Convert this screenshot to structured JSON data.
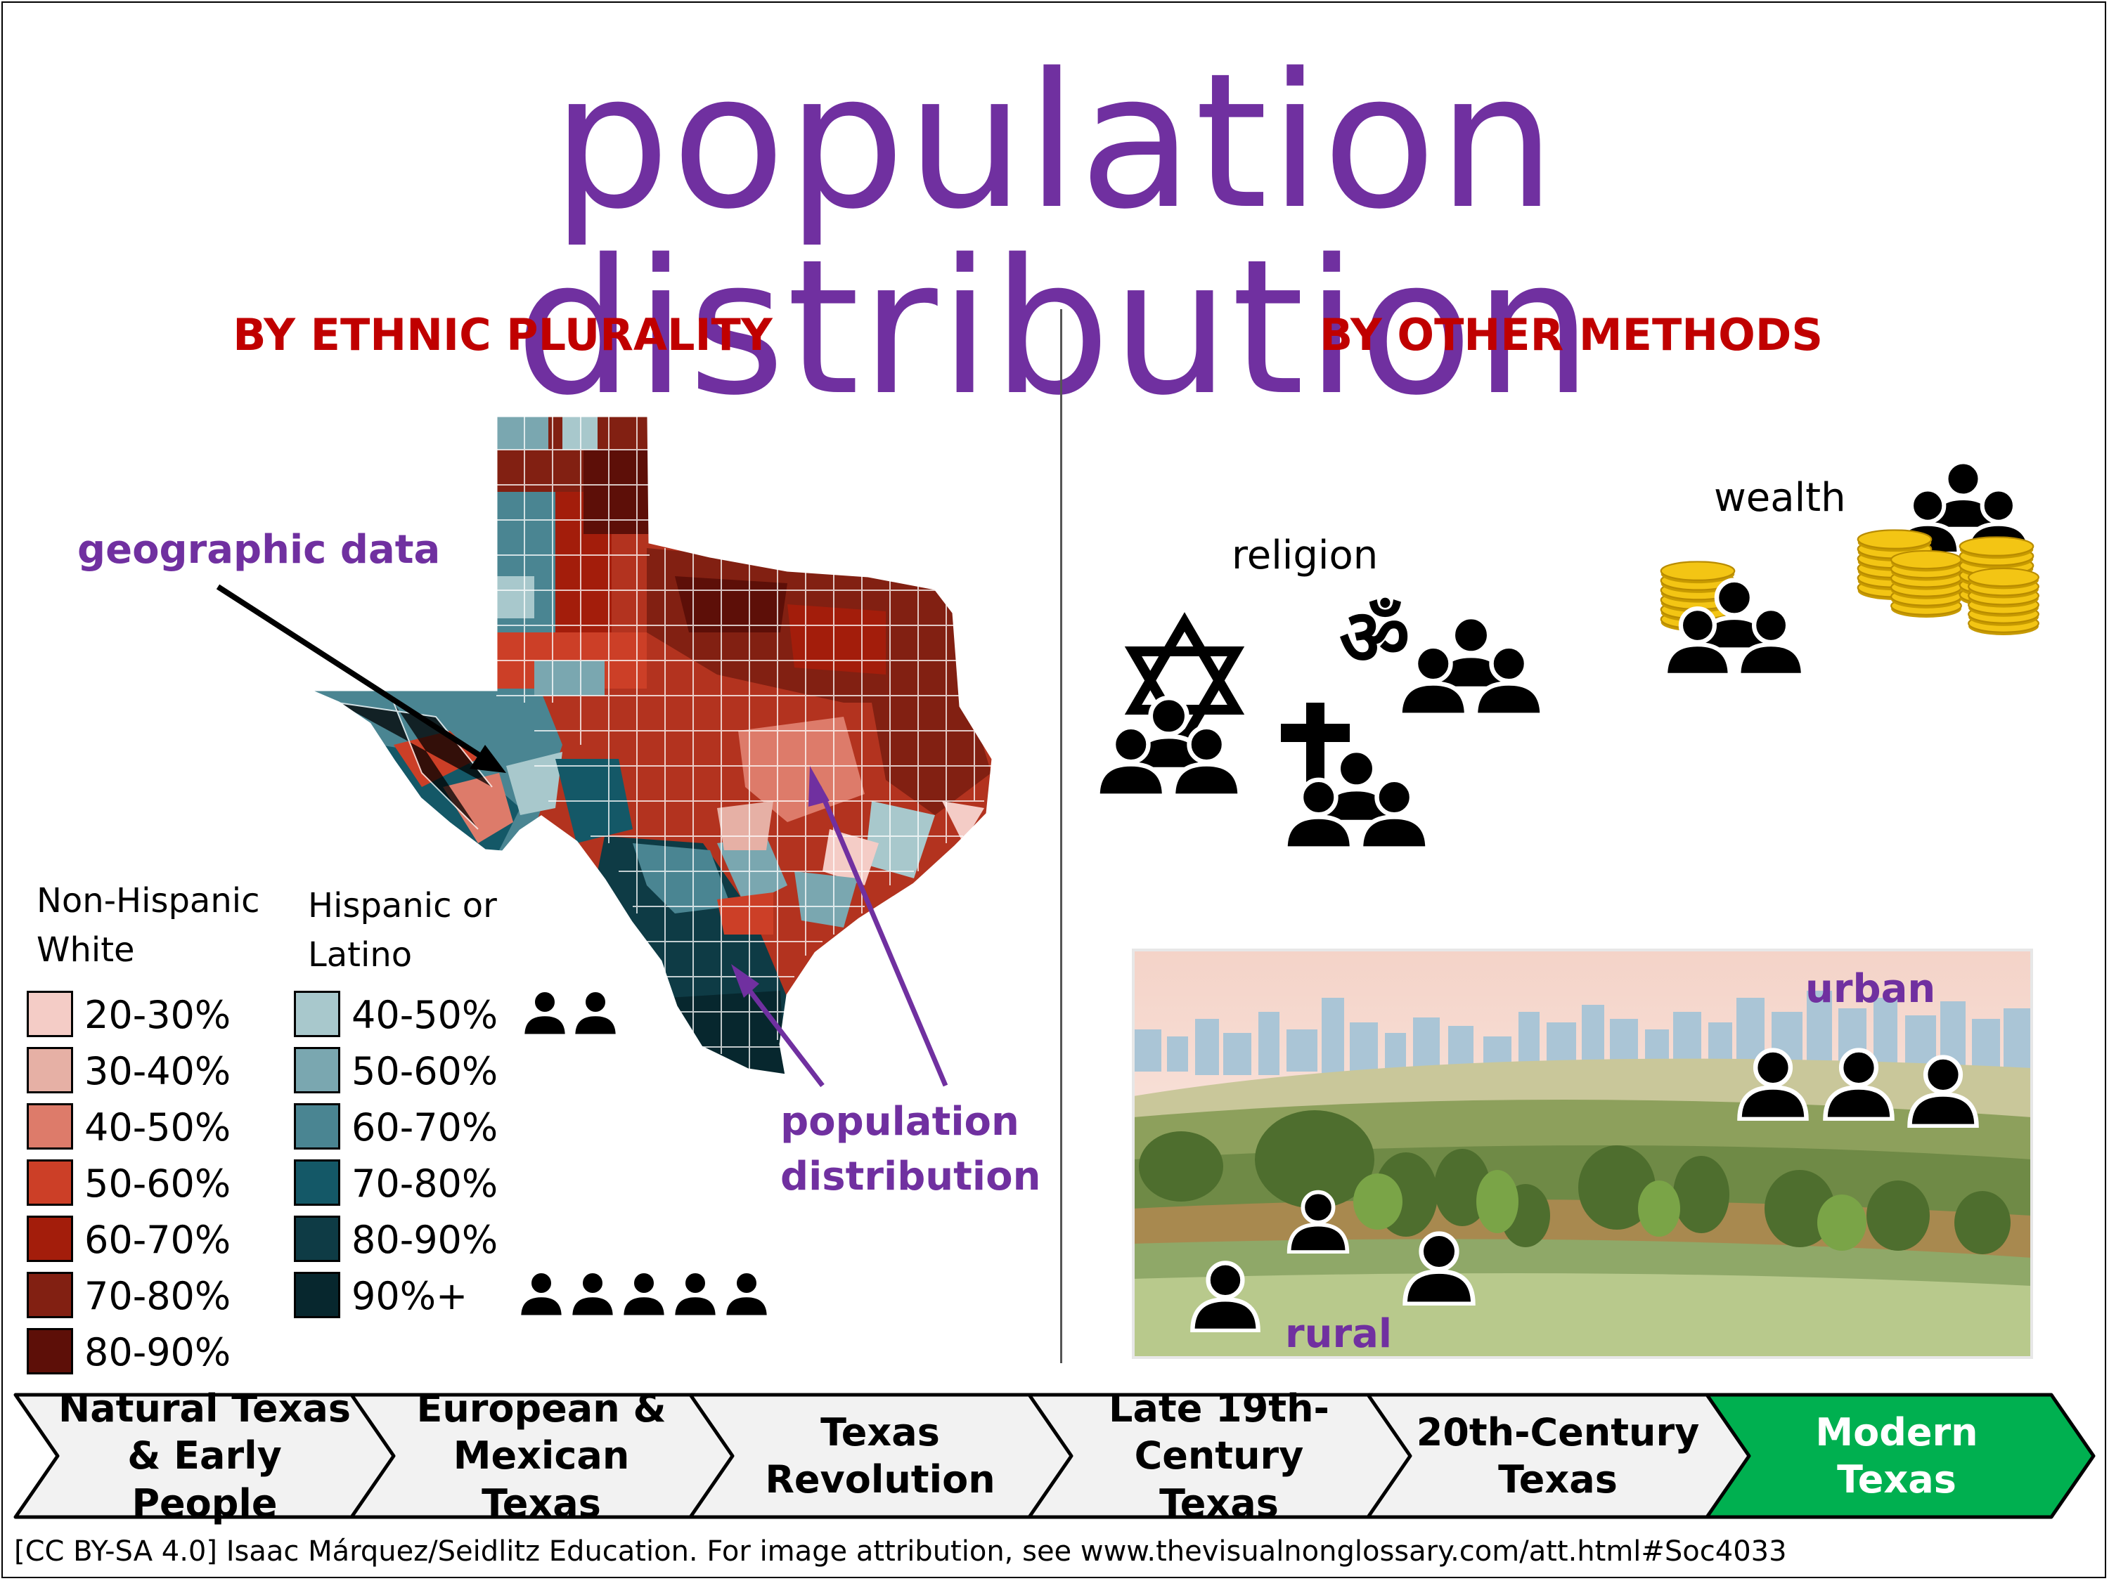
{
  "title": "population distribution",
  "left_section": {
    "heading": "BY ETHNIC PLURALITY",
    "annotation_geographic": "geographic data",
    "annotation_population": "population distribution",
    "legend_white": {
      "title": "Non-Hispanic White",
      "items": [
        {
          "label": "20-30%",
          "color": "#f4ccc6"
        },
        {
          "label": "30-40%",
          "color": "#e6b0a5"
        },
        {
          "label": "40-50%",
          "color": "#dd7b6a"
        },
        {
          "label": "50-60%",
          "color": "#cc3f27"
        },
        {
          "label": "60-70%",
          "color": "#a31d0b"
        },
        {
          "label": "70-80%",
          "color": "#822012"
        },
        {
          "label": "80-90%",
          "color": "#5d0f08"
        }
      ]
    },
    "legend_hispanic": {
      "title": "Hispanic or Latino",
      "items": [
        {
          "label": "40-50%",
          "color": "#a8c8cc"
        },
        {
          "label": "50-60%",
          "color": "#7aa7b0"
        },
        {
          "label": "60-70%",
          "color": "#4a8592"
        },
        {
          "label": "70-80%",
          "color": "#145867"
        },
        {
          "label": "80-90%",
          "color": "#0e3b45"
        },
        {
          "label": "90%+",
          "color": "#07272e"
        }
      ]
    }
  },
  "right_section": {
    "heading": "BY OTHER METHODS",
    "religion_label": "religion",
    "wealth_label": "wealth",
    "om_symbol": "ॐ",
    "urban_label": "urban",
    "rural_label": "rural"
  },
  "icons": [
    "person-group-icon",
    "star-of-david-icon",
    "cross-icon",
    "om-icon",
    "coin-stack-icon",
    "texas-map",
    "city-skyline",
    "farmland"
  ],
  "timeline": [
    {
      "line1": "Natural Texas",
      "line2": "& Early People",
      "active": false
    },
    {
      "line1": "European &",
      "line2": "Mexican Texas",
      "active": false
    },
    {
      "line1": "Texas",
      "line2": "Revolution",
      "active": false
    },
    {
      "line1": "Late 19th-",
      "line2": "Century Texas",
      "active": false
    },
    {
      "line1": "20th-Century",
      "line2": "Texas",
      "active": false
    },
    {
      "line1": "Modern",
      "line2": "Texas",
      "active": true
    }
  ],
  "colors": {
    "title": "#7030a0",
    "heading": "#c00000",
    "timeline_active": "#00b050",
    "timeline_inactive": "#f2f2f2"
  },
  "credit": "[CC BY-SA 4.0] Isaac Márquez/Seidlitz Education. For image attribution, see www.thevisualnonglossary.com/att.html#Soc4033"
}
